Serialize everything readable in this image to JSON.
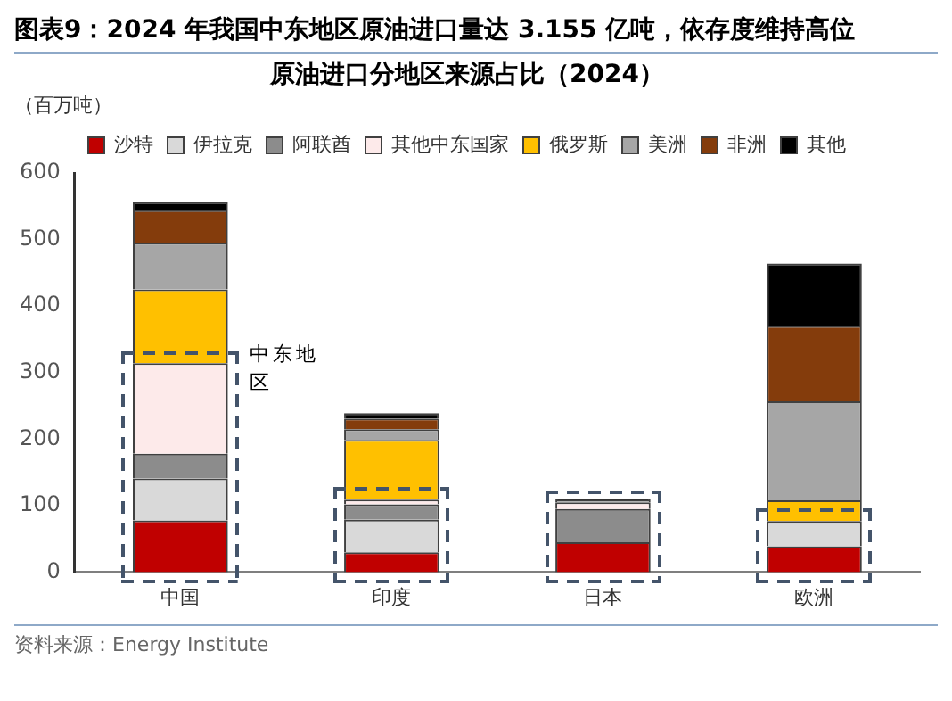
{
  "chart_data": {
    "type": "bar",
    "title": "图表9：2024 年我国中东地区原油进口量达 3.155 亿吨，依存度维持高位",
    "subtitle": "原油进口分地区来源占比（2024）",
    "ylabel": "（百万吨）",
    "categories": [
      "中国",
      "印度",
      "日本",
      "欧洲"
    ],
    "stacked": true,
    "legend": "top",
    "grid": false,
    "ylim": [
      0,
      600
    ],
    "yticks": [
      0,
      100,
      200,
      300,
      400,
      500,
      600
    ],
    "series": [
      {
        "name": "沙特",
        "color": "#c00000",
        "values": [
          78,
          30,
          45,
          39
        ]
      },
      {
        "name": "伊拉克",
        "color": "#d9d9d9",
        "values": [
          63,
          49,
          0,
          38
        ]
      },
      {
        "name": "阿联酋",
        "color": "#8c8c8c",
        "values": [
          37,
          23,
          50,
          0
        ]
      },
      {
        "name": "其他中东国家",
        "color": "#fdeaea",
        "values": [
          136,
          7,
          10,
          0
        ]
      },
      {
        "name": "俄罗斯",
        "color": "#ffc000",
        "values": [
          111,
          90,
          0,
          31
        ]
      },
      {
        "name": "美洲",
        "color": "#a6a6a6",
        "values": [
          70,
          16,
          3,
          149
        ]
      },
      {
        "name": "非洲",
        "color": "#843c0c",
        "values": [
          49,
          16,
          0,
          113
        ]
      },
      {
        "name": "其他",
        "color": "#000000",
        "values": [
          12,
          8,
          2,
          94
        ]
      }
    ],
    "annotations": [
      "中东地区",
      "资料来源：Energy Institute"
    ]
  }
}
